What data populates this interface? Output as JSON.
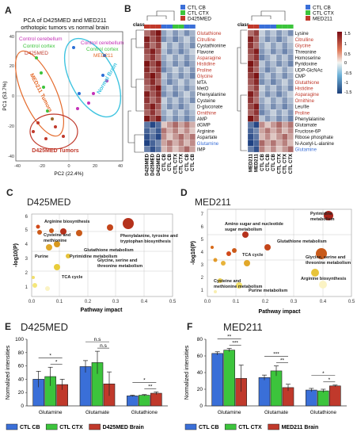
{
  "panels": {
    "A": "A",
    "B": "B",
    "C": "C",
    "D": "D",
    "E": "E",
    "F": "F"
  },
  "colors": {
    "ctl_cb": "#3a6fd8",
    "ctl_ctx": "#3cc43c",
    "tumor": "#c0392b",
    "metabolite_red": "#c0392b",
    "metabolite_blue": "#3a6fd8"
  },
  "panel_a": {
    "title_line1": "PCA of D425MED and MED211",
    "title_line2": "orthotopic tumors vs normal brain",
    "labels": {
      "control_cerebellum_1": "Control cerebellum",
      "control_cerebellum_2": "Control cerebellum",
      "control_cortex_1": "Control cortex",
      "control_cortex_2": "Control cortex",
      "d425med": "D425MED",
      "med211": "MED211",
      "med211_tumors": "MED211 Tumors",
      "normal_brain": "Normal Brain",
      "d425med_tumors": "D425MED Tumors"
    },
    "xlabel": "PC2 (22.4%)",
    "ylabel": "PC1 (53.7%)",
    "xticks": [
      "-40",
      "-20",
      "0",
      "20",
      "40"
    ],
    "yticks": [
      "40",
      "20",
      "0",
      "-20",
      "-40"
    ]
  },
  "panel_b": {
    "class_label": "class",
    "legend_left": [
      "CTL CB",
      "CTL CTX",
      "D425MED"
    ],
    "legend_right": [
      "CTL CB",
      "CTL CTX",
      "MED211"
    ],
    "colorbar_ticks": [
      "1.5",
      "1",
      "0.5",
      "0",
      "-0.5",
      "-1",
      "-1.5"
    ],
    "rows_left": [
      {
        "name": "Glutathione",
        "color": "red"
      },
      {
        "name": "Citrulline",
        "color": "red"
      },
      {
        "name": "Cystathionine",
        "color": "black"
      },
      {
        "name": "Flavone",
        "color": "black"
      },
      {
        "name": "Asparagine",
        "color": "red"
      },
      {
        "name": "Histidine",
        "color": "red"
      },
      {
        "name": "Proline",
        "color": "red"
      },
      {
        "name": "Glycine",
        "color": "red"
      },
      {
        "name": "MTA",
        "color": "black"
      },
      {
        "name": "MetO",
        "color": "black"
      },
      {
        "name": "Phenyalanine",
        "color": "black"
      },
      {
        "name": "Cysteine",
        "color": "black"
      },
      {
        "name": "D-gluconate",
        "color": "black"
      },
      {
        "name": "Ornithine",
        "color": "red"
      },
      {
        "name": "AMP",
        "color": "black"
      },
      {
        "name": "dGMP",
        "color": "black"
      },
      {
        "name": "Arginine",
        "color": "black"
      },
      {
        "name": "Aspartate",
        "color": "black"
      },
      {
        "name": "Glutamine",
        "color": "blue"
      },
      {
        "name": "IMP",
        "color": "black"
      }
    ],
    "rows_right": [
      {
        "name": "Lysine",
        "color": "black"
      },
      {
        "name": "Citrulline",
        "color": "red"
      },
      {
        "name": "Glycine",
        "color": "red"
      },
      {
        "name": "Threonine",
        "color": "black"
      },
      {
        "name": "Homoserine",
        "color": "black"
      },
      {
        "name": "Pyridoxine",
        "color": "black"
      },
      {
        "name": "UDP-GlcNAc",
        "color": "black"
      },
      {
        "name": "CMP",
        "color": "black"
      },
      {
        "name": "Glutathione",
        "color": "red"
      },
      {
        "name": "Histidine",
        "color": "red"
      },
      {
        "name": "Asparagine",
        "color": "red"
      },
      {
        "name": "Ornithine",
        "color": "red"
      },
      {
        "name": "Leu/Ile",
        "color": "black"
      },
      {
        "name": "Proline",
        "color": "red"
      },
      {
        "name": "Phenylalanine",
        "color": "black"
      },
      {
        "name": "Glutamate",
        "color": "black"
      },
      {
        "name": "Fructose-6P",
        "color": "black"
      },
      {
        "name": "Ribose phosphate",
        "color": "black"
      },
      {
        "name": "N-Acetyl-L-alanine",
        "color": "black"
      },
      {
        "name": "Glutamine",
        "color": "blue"
      }
    ],
    "cols_left": [
      "D425MED",
      "D425MED",
      "D425MED",
      "CTL CB",
      "CTL CB",
      "CTL CTX",
      "CTL CTX",
      "CTL CB",
      "CTL CB"
    ],
    "cols_right": [
      "MED211",
      "MED211",
      "CTL CB",
      "CTL CB",
      "CTL CB",
      "CTL CTX",
      "CTL CTX",
      "CTL CTX"
    ]
  },
  "panel_c": {
    "title": "D425MED",
    "xlabel": "Pathway impact",
    "ylabel": "-log10(P)",
    "xticks": [
      "0.0",
      "0.1",
      "0.2",
      "0.3",
      "0.4",
      "0.5"
    ],
    "yticks": [
      "1",
      "2",
      "3",
      "4",
      "5",
      "6"
    ],
    "annotations": [
      "Arginine biosynthesis",
      "Cysteine and\nmethionine metabolism",
      "Phenylalanine, tyrosine and\ntryptophan biosynthesis",
      "Glutathione metabolism",
      "Purine",
      "Pyrimidine metabolism",
      "Glycine, serine and\nthreonine metabolism",
      "TCA cycle"
    ]
  },
  "panel_d": {
    "title": "MED211",
    "xlabel": "Pathway impact",
    "ylabel": "-log10(P)",
    "xticks": [
      "0.0",
      "0.1",
      "0.2",
      "0.3",
      "0.4",
      "0.5"
    ],
    "yticks": [
      "1",
      "2",
      "3",
      "4",
      "5",
      "6",
      "7"
    ],
    "annotations": [
      "Pyrimidine\nmetabolism",
      "Amino sugar and nucleotide\nsugar metabolism",
      "Glutathione metabolism",
      "TCA cycle",
      "Glycine, serine and\nthreonine metabolism",
      "Arginine biosynthesis",
      "Cysteine and\nmethionine metabolism",
      "Purine metabolism"
    ]
  },
  "chart_data": [
    {
      "type": "bar",
      "title": "D425MED",
      "ylabel": "Normalized intensities",
      "categories": [
        "Glutamine",
        "Glutamate",
        "Glutathione"
      ],
      "ylim": [
        0,
        100
      ],
      "yticks": [
        "0",
        "20",
        "40",
        "60",
        "80",
        "100"
      ],
      "series": [
        {
          "name": "CTL CB",
          "values": [
            40,
            59,
            15
          ],
          "errors": [
            12,
            9,
            1
          ]
        },
        {
          "name": "CTL CTX",
          "values": [
            44,
            65,
            16
          ],
          "errors": [
            14,
            17,
            1
          ]
        },
        {
          "name": "D425MED Brain",
          "values": [
            32,
            33,
            19
          ],
          "errors": [
            8,
            18,
            2
          ]
        }
      ],
      "significance": [
        "*",
        "*",
        "n.s",
        "n.s",
        "*",
        "**"
      ]
    },
    {
      "type": "bar",
      "title": "MED211",
      "ylabel": "Normalized intensities",
      "categories": [
        "Glutamine",
        "Glutamate",
        "Glutathione"
      ],
      "ylim": [
        0,
        80
      ],
      "yticks": [
        "0",
        "20",
        "40",
        "60",
        "80"
      ],
      "series": [
        {
          "name": "CTL CB",
          "values": [
            63,
            34,
            19
          ],
          "errors": [
            2,
            3,
            2
          ]
        },
        {
          "name": "CTL CTX",
          "values": [
            67,
            42,
            18
          ],
          "errors": [
            2,
            6,
            2
          ]
        },
        {
          "name": "MED211 Brain",
          "values": [
            33,
            22,
            24
          ],
          "errors": [
            16,
            4,
            1
          ]
        }
      ],
      "significance": [
        "**",
        "***",
        "***",
        "**",
        "*",
        "*"
      ]
    }
  ]
}
